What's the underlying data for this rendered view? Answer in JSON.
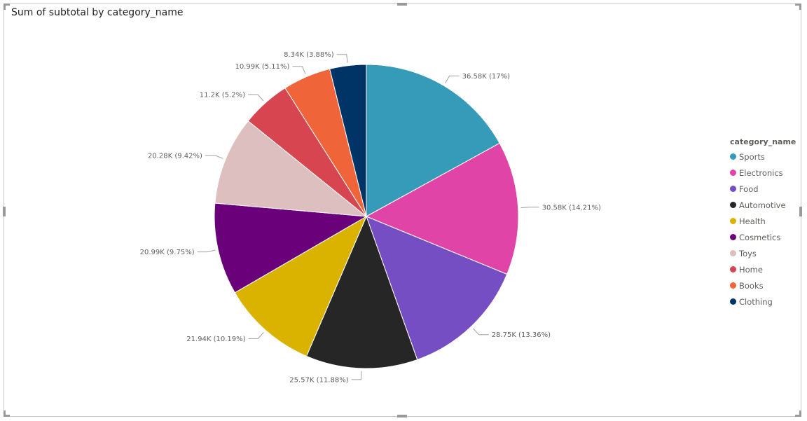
{
  "chart_data": {
    "type": "pie",
    "title": "Sum of subtotal by category_name",
    "legend_title": "category_name",
    "legend_position": "right",
    "slices": [
      {
        "name": "Sports",
        "value": 36.58,
        "label": "36.58K (17%)",
        "color": "#359BB9"
      },
      {
        "name": "Electronics",
        "value": 30.58,
        "label": "30.58K (14.21%)",
        "color": "#E044A7"
      },
      {
        "name": "Food",
        "value": 28.75,
        "label": "28.75K (13.36%)",
        "color": "#744EC2"
      },
      {
        "name": "Automotive",
        "value": 25.57,
        "label": "25.57K (11.88%)",
        "color": "#262626"
      },
      {
        "name": "Health",
        "value": 21.94,
        "label": "21.94K (10.19%)",
        "color": "#D9B300"
      },
      {
        "name": "Cosmetics",
        "value": 20.99,
        "label": "20.99K (9.75%)",
        "color": "#6B007B"
      },
      {
        "name": "Toys",
        "value": 20.28,
        "label": "20.28K (9.42%)",
        "color": "#DEBFBF"
      },
      {
        "name": "Home",
        "value": 11.2,
        "label": "11.2K (5.2%)",
        "color": "#D64550"
      },
      {
        "name": "Books",
        "value": 10.99,
        "label": "10.99K (5.11%)",
        "color": "#F0643A"
      },
      {
        "name": "Clothing",
        "value": 8.34,
        "label": "8.34K (3.88%)",
        "color": "#003366"
      }
    ]
  }
}
